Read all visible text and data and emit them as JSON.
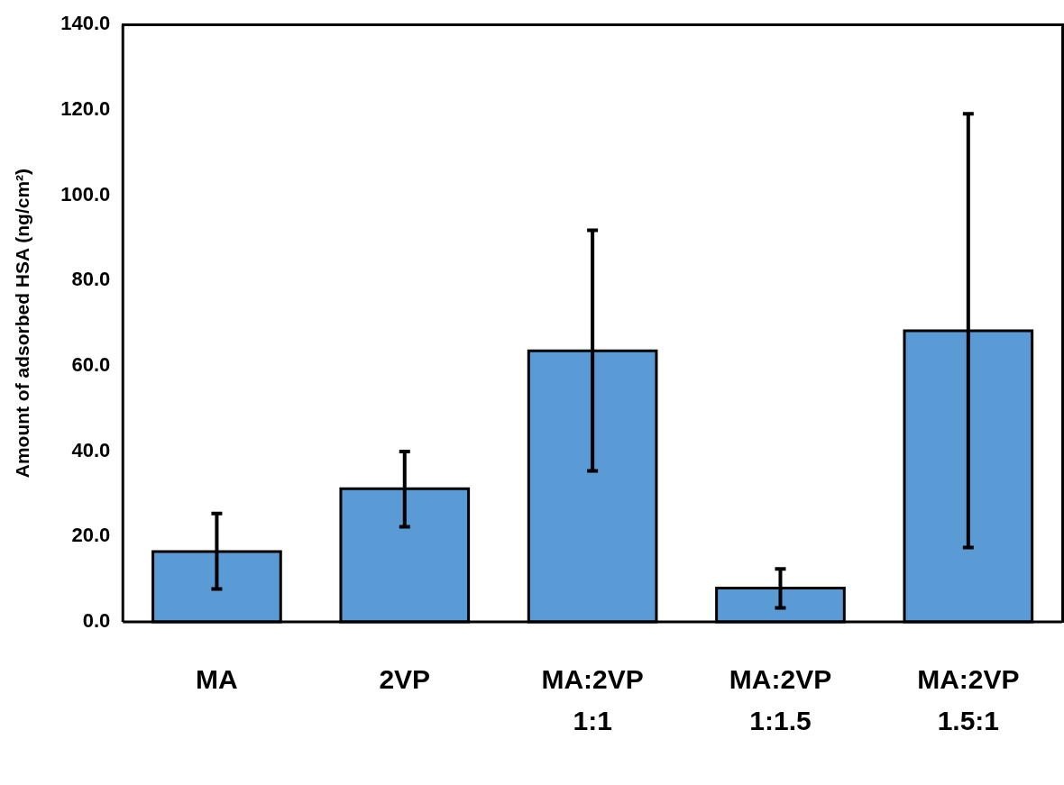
{
  "chart_data": {
    "type": "bar",
    "ylabel": "Amount of adsorbed HSA (ng/cm²)",
    "categories": [
      "MA",
      "2VP",
      "MA:2VP 1:1",
      "MA:2VP 1:1.5",
      "MA:2VP 1.5:1"
    ],
    "values": [
      16.5,
      31.2,
      63.5,
      7.9,
      68.2
    ],
    "errors": [
      [
        7.7,
        25.4
      ],
      [
        22.3,
        39.9
      ],
      [
        35.4,
        91.8
      ],
      [
        3.3,
        12.4
      ],
      [
        17.4,
        119.1
      ]
    ],
    "color": "#5b9bd5",
    "ylim": [
      0,
      140
    ],
    "yticks": [
      {
        "value": 0,
        "label": "0.0"
      },
      {
        "value": 20,
        "label": "20.0"
      },
      {
        "value": 40,
        "label": "40.0"
      },
      {
        "value": 60,
        "label": "60.0"
      },
      {
        "value": 80,
        "label": "80.0"
      },
      {
        "value": 100,
        "label": "100.0"
      },
      {
        "value": 120,
        "label": "120.0"
      },
      {
        "value": 140,
        "label": "140.0"
      }
    ],
    "grid": false,
    "legend": false
  }
}
